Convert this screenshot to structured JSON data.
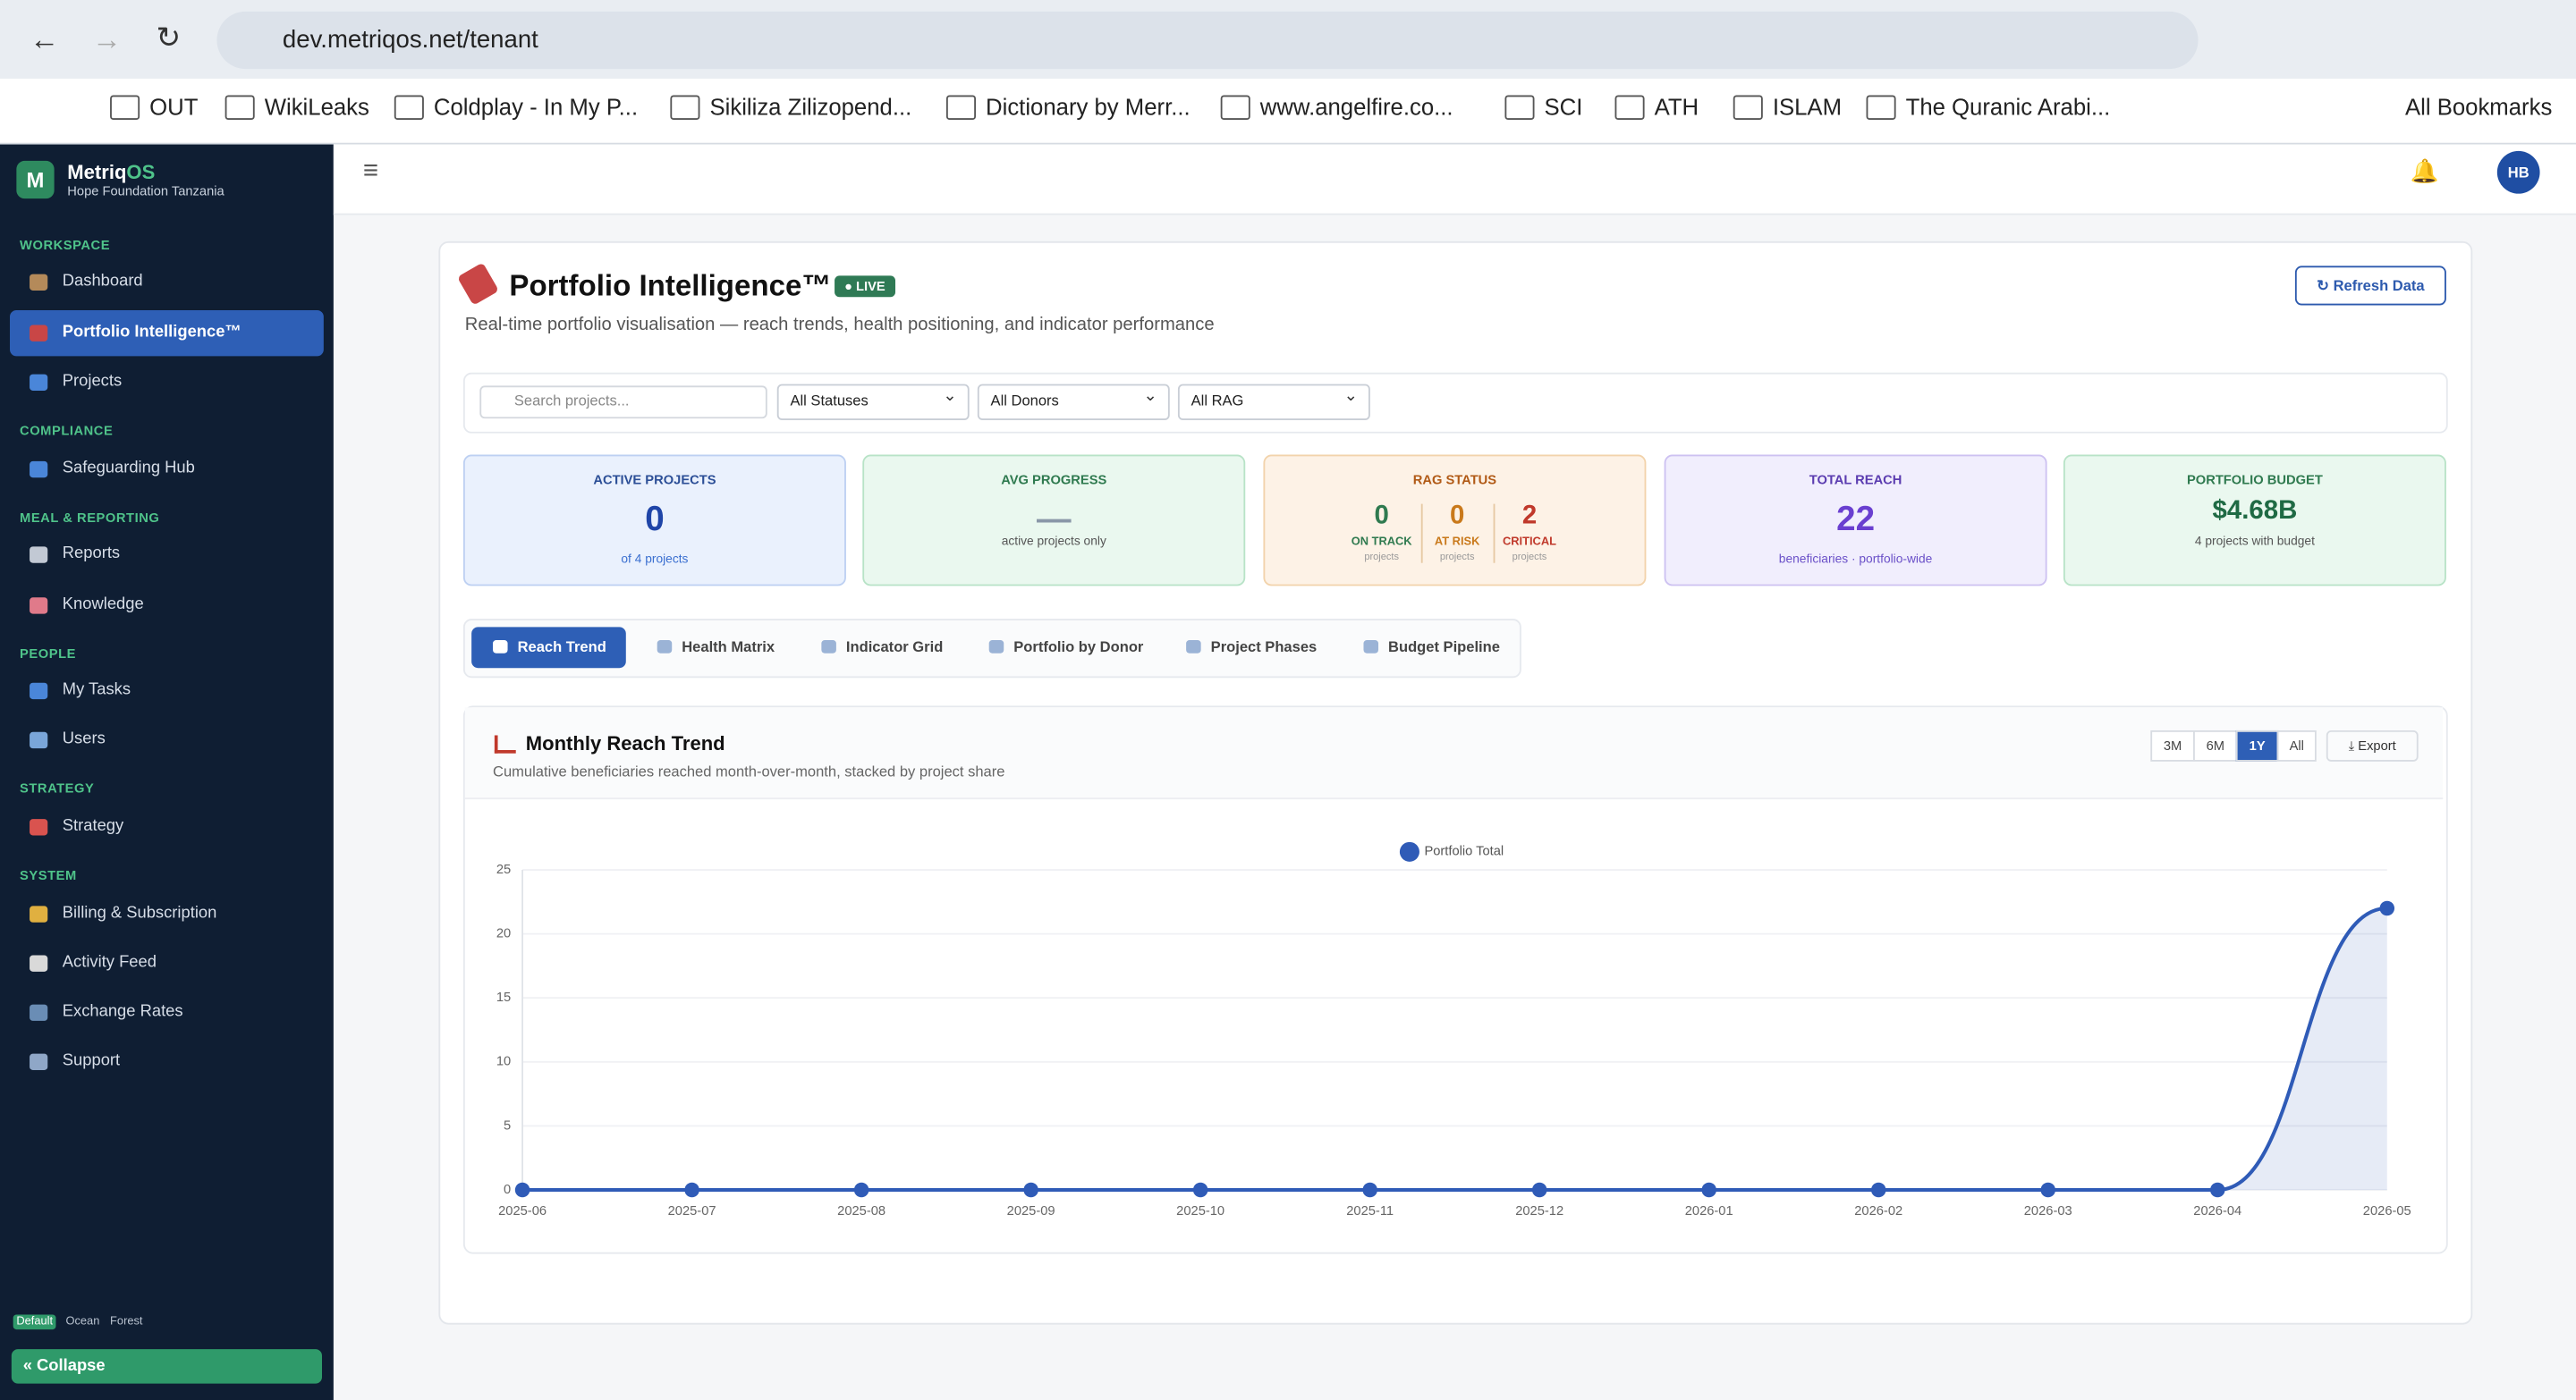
{
  "browser": {
    "url": "dev.metriqos.net/tenant",
    "bookmarks": [
      "OUT",
      "WikiLeaks",
      "Coldplay - In My P...",
      "Sikiliza Zilizopend...",
      "Dictionary by Merr...",
      "www.angelfire.co...",
      "SCI",
      "ATH",
      "ISLAM",
      "The Quranic Arabi..."
    ],
    "all_bookmarks": "All Bookmarks"
  },
  "sidebar": {
    "logo": "M",
    "brand_a": "Metriq",
    "brand_b": "OS",
    "org": "Hope Foundation Tanzania",
    "sections": [
      {
        "title": "WORKSPACE",
        "items": [
          "Dashboard",
          "Portfolio Intelligence™",
          "Projects"
        ]
      },
      {
        "title": "COMPLIANCE",
        "items": [
          "Safeguarding Hub"
        ]
      },
      {
        "title": "MEAL & REPORTING",
        "items": [
          "Reports",
          "Knowledge"
        ]
      },
      {
        "title": "PEOPLE",
        "items": [
          "My Tasks",
          "Users"
        ]
      },
      {
        "title": "STRATEGY",
        "items": [
          "Strategy"
        ]
      },
      {
        "title": "SYSTEM",
        "items": [
          "Billing & Subscription",
          "Activity Feed",
          "Exchange Rates",
          "Support"
        ]
      }
    ],
    "themes": [
      "Default",
      "Ocean",
      "Forest"
    ],
    "collapse": "Collapse"
  },
  "header": {
    "avatar": "HB"
  },
  "page": {
    "title": "Portfolio Intelligence™",
    "badge": "LIVE",
    "subtitle": "Real-time portfolio visualisation — reach trends, health positioning, and indicator performance",
    "refresh": "Refresh Data",
    "search": "Search projects...",
    "filters": [
      "All Statuses",
      "All Donors",
      "All RAG"
    ],
    "kpis": {
      "active": {
        "label": "ACTIVE PROJECTS",
        "value": 0,
        "note": "of 4 projects"
      },
      "progress": {
        "label": "AVG PROGRESS",
        "value": "—",
        "note": "active projects only"
      },
      "rag": {
        "label": "RAG STATUS",
        "items": [
          {
            "value": 0,
            "label": "ON TRACK",
            "sub": "projects"
          },
          {
            "value": 0,
            "label": "AT RISK",
            "sub": "projects"
          },
          {
            "value": 2,
            "label": "CRITICAL",
            "sub": "projects"
          }
        ]
      },
      "reach": {
        "label": "TOTAL REACH",
        "value": 22,
        "note": "beneficiaries · portfolio-wide"
      },
      "budget": {
        "label": "PORTFOLIO BUDGET",
        "value": "$4.68B",
        "note": "4 projects with budget"
      }
    },
    "tabs": [
      "Reach Trend",
      "Health Matrix",
      "Indicator Grid",
      "Portfolio by Donor",
      "Project Phases",
      "Budget Pipeline"
    ],
    "panel": {
      "title": "Monthly Reach Trend",
      "subtitle": "Cumulative beneficiaries reached month-over-month, stacked by project share",
      "ranges": [
        "3M",
        "6M",
        "1Y",
        "All"
      ],
      "export": "Export"
    }
  },
  "chart_data": {
    "type": "line",
    "x": [
      "2025-06",
      "2025-07",
      "2025-08",
      "2025-09",
      "2025-10",
      "2025-11",
      "2025-12",
      "2026-01",
      "2026-02",
      "2026-03",
      "2026-04",
      "2026-05"
    ],
    "series": [
      {
        "name": "Portfolio Total",
        "color": "#2f5bb7",
        "values": [
          0,
          0,
          0,
          0,
          0,
          0,
          0,
          0,
          0,
          0,
          0,
          22
        ]
      }
    ],
    "ylim": [
      0,
      25
    ],
    "yticks": [
      0,
      5,
      10,
      15,
      20,
      25
    ],
    "grid": true,
    "legend": "top"
  }
}
